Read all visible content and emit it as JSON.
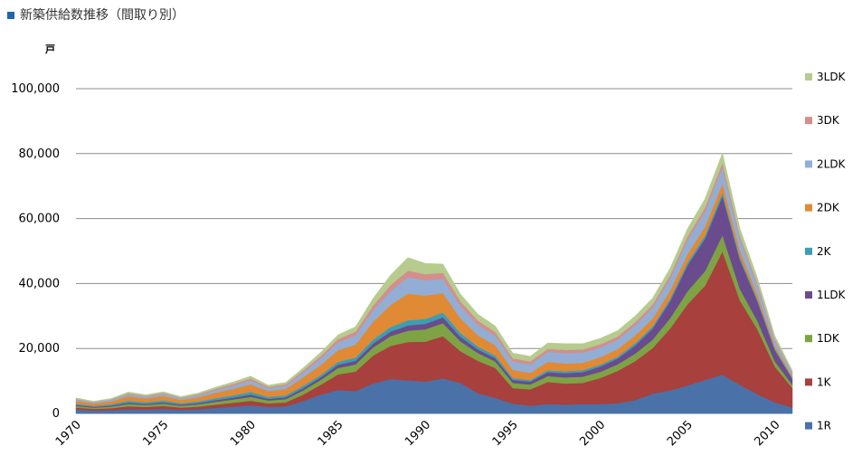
{
  "chart_data": {
    "type": "area",
    "stacked": true,
    "title": "新築供給数推移（間取り別）",
    "ylabel": "戸",
    "ylim": [
      0,
      100000
    ],
    "yticks": [
      "0",
      "20,000",
      "40,000",
      "60,000",
      "80,000",
      "100,000"
    ],
    "ytick_values": [
      0,
      20000,
      40000,
      60000,
      80000,
      100000
    ],
    "xlim": [
      1970,
      2011
    ],
    "xticks": [
      1970,
      1975,
      1980,
      1985,
      1990,
      1995,
      2000,
      2005,
      2010
    ],
    "grid": true,
    "legend_position": "right",
    "x": [
      1970,
      1971,
      1972,
      1973,
      1974,
      1975,
      1976,
      1977,
      1978,
      1979,
      1980,
      1981,
      1982,
      1983,
      1984,
      1985,
      1986,
      1987,
      1988,
      1989,
      1990,
      1991,
      1992,
      1993,
      1994,
      1995,
      1996,
      1997,
      1998,
      1999,
      2000,
      2001,
      2002,
      2003,
      2004,
      2005,
      2006,
      2007,
      2008,
      2009,
      2010,
      2011
    ],
    "series": [
      {
        "name": "1R",
        "color": "#4a72a8",
        "values": [
          1200,
          900,
          1000,
          1300,
          1200,
          1400,
          1100,
          1300,
          1700,
          2100,
          2500,
          2000,
          2200,
          3800,
          5800,
          7200,
          6900,
          9200,
          10600,
          10200,
          9800,
          10800,
          9400,
          6200,
          4800,
          3000,
          2400,
          2900,
          2700,
          2900,
          2900,
          3100,
          4100,
          6100,
          7100,
          8600,
          10300,
          11900,
          8800,
          5900,
          3400,
          1800
        ]
      },
      {
        "name": "1K",
        "color": "#a8403d",
        "values": [
          600,
          500,
          600,
          900,
          800,
          900,
          700,
          800,
          1000,
          1200,
          1400,
          1100,
          1200,
          2000,
          3000,
          4800,
          6000,
          8600,
          10200,
          11800,
          12300,
          13000,
          9800,
          10000,
          9200,
          4800,
          5000,
          6800,
          6500,
          6500,
          8000,
          10000,
          12000,
          14000,
          19000,
          25000,
          29000,
          38000,
          26000,
          20000,
          11000,
          6000
        ]
      },
      {
        "name": "1DK",
        "color": "#7ea344",
        "values": [
          500,
          400,
          500,
          700,
          600,
          700,
          600,
          700,
          900,
          1000,
          1200,
          900,
          1000,
          1300,
          1500,
          2000,
          2200,
          2500,
          3000,
          3500,
          3800,
          4000,
          3000,
          2400,
          2000,
          1600,
          1500,
          1800,
          1900,
          1900,
          1900,
          2000,
          2300,
          2600,
          3200,
          4000,
          4500,
          5000,
          3500,
          2600,
          1600,
          1000
        ]
      },
      {
        "name": "1LDK",
        "color": "#6a4b8e",
        "values": [
          300,
          250,
          300,
          400,
          350,
          400,
          350,
          400,
          500,
          600,
          700,
          500,
          550,
          700,
          800,
          1000,
          1100,
          1200,
          1400,
          1600,
          1700,
          1800,
          1400,
          1100,
          1000,
          900,
          900,
          1200,
          1300,
          1400,
          1600,
          1800,
          2500,
          3400,
          5200,
          8000,
          10000,
          12000,
          9000,
          6000,
          3500,
          1800
        ]
      },
      {
        "name": "2K",
        "color": "#3b9eb3",
        "values": [
          400,
          300,
          400,
          600,
          500,
          600,
          400,
          500,
          600,
          700,
          800,
          600,
          600,
          700,
          700,
          900,
          1000,
          1200,
          1400,
          1600,
          1500,
          1500,
          1200,
          900,
          800,
          600,
          500,
          600,
          600,
          600,
          600,
          600,
          700,
          700,
          800,
          900,
          1000,
          1100,
          800,
          600,
          400,
          300
        ]
      },
      {
        "name": "2DK",
        "color": "#e08a35",
        "values": [
          900,
          700,
          900,
          1400,
          1200,
          1400,
          1000,
          1300,
          1700,
          2000,
          2400,
          1800,
          2000,
          2600,
          3100,
          3600,
          4000,
          5500,
          6800,
          8200,
          7200,
          6000,
          4500,
          3500,
          3200,
          2500,
          2200,
          2600,
          2400,
          2300,
          2300,
          2300,
          2400,
          2400,
          2500,
          2600,
          2700,
          2800,
          2000,
          1500,
          900,
          500
        ]
      },
      {
        "name": "2LDK",
        "color": "#93aed4",
        "values": [
          400,
          300,
          400,
          600,
          500,
          600,
          500,
          600,
          800,
          1000,
          1200,
          900,
          1000,
          1500,
          2000,
          2400,
          2800,
          3500,
          4300,
          5000,
          4700,
          4400,
          3800,
          3200,
          2900,
          2600,
          2600,
          3000,
          3200,
          3100,
          3000,
          2900,
          3100,
          3300,
          3700,
          4200,
          4600,
          5000,
          3700,
          2800,
          1600,
          900
        ]
      },
      {
        "name": "3DK",
        "color": "#d48e8c",
        "values": [
          200,
          150,
          200,
          300,
          250,
          300,
          200,
          300,
          400,
          500,
          600,
          400,
          450,
          600,
          800,
          1000,
          1200,
          1500,
          1800,
          2100,
          1900,
          1800,
          1500,
          1300,
          1200,
          1000,
          900,
          1000,
          1000,
          1000,
          1000,
          1000,
          1000,
          1000,
          1100,
          1200,
          1300,
          1400,
          1000,
          800,
          500,
          300
        ]
      },
      {
        "name": "3LDK",
        "color": "#b5cc8e",
        "values": [
          300,
          250,
          300,
          400,
          350,
          400,
          350,
          400,
          500,
          600,
          700,
          500,
          550,
          800,
          1100,
          1300,
          1500,
          2200,
          3100,
          4000,
          3300,
          2700,
          2200,
          2000,
          1800,
          1600,
          1600,
          1800,
          1900,
          1800,
          1800,
          1800,
          1900,
          2000,
          2100,
          2400,
          2700,
          3000,
          2200,
          1600,
          1000,
          600
        ]
      }
    ]
  }
}
